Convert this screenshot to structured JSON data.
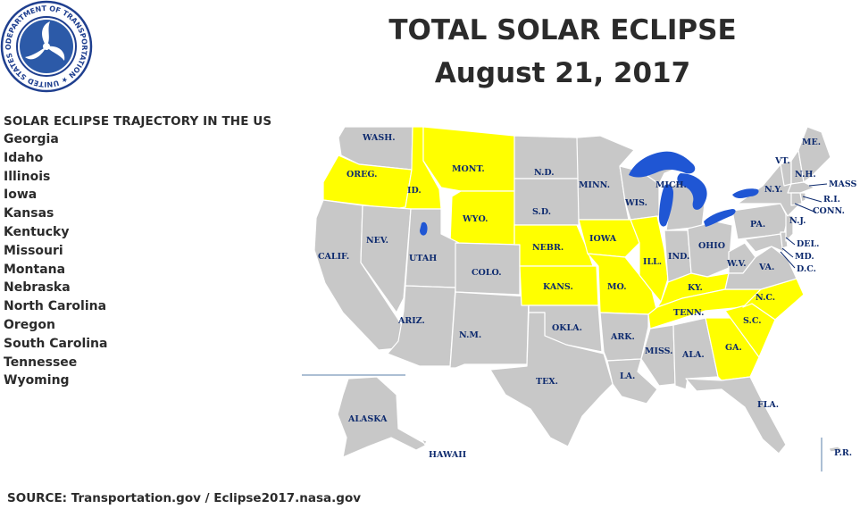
{
  "seal": {
    "ring_text": "DEPARTMENT OF TRANSPORTATION · UNITED STATES OF AMERICA",
    "colors": {
      "ring": "#1f3f8f",
      "center": "#2c5aa8"
    }
  },
  "title": {
    "line1": "TOTAL SOLAR ECLIPSE",
    "line2": "August 21, 2017"
  },
  "trajectory": {
    "heading": "SOLAR ECLIPSE TRAJECTORY IN THE US",
    "states": [
      "Georgia",
      "Idaho",
      "Illinois",
      "Iowa",
      "Kansas",
      "Kentucky",
      "Missouri",
      "Montana",
      "Nebraska",
      "North Carolina",
      "Oregon",
      "South Carolina",
      "Tennessee",
      "Wyoming"
    ]
  },
  "source": "SOURCE: Transportation.gov / Eclipse2017.nasa.gov",
  "map": {
    "colors": {
      "path": "#ffff00",
      "other": "#c8c8c8",
      "water": "#1f56d4",
      "label": "#0d2a6e",
      "border": "#ffffff"
    },
    "labels": {
      "wa": "WASH.",
      "or": "OREG.",
      "id": "ID.",
      "mt": "MONT.",
      "nd": "N.D.",
      "mn": "MINN.",
      "wi": "WIS.",
      "mi": "MICH.",
      "me": "ME.",
      "vt": "VT.",
      "nh": "N.H.",
      "mass": "MASS",
      "ny": "N.Y.",
      "ri": "R.I.",
      "conn": "CONN.",
      "sd": "S.D.",
      "wy": "WYO.",
      "nv": "NEV.",
      "ut": "UTAH",
      "ca": "CALIF.",
      "ne": "NEBR.",
      "ia": "IOWA",
      "il": "ILL.",
      "in": "IND.",
      "oh": "OHIO",
      "pa": "PA.",
      "nj": "N.J.",
      "de": "DEL.",
      "md": "MD.",
      "dc": "D.C.",
      "wv": "W.V.",
      "va": "VA.",
      "co": "COLO.",
      "ks": "KANS.",
      "mo": "MO.",
      "ky": "KY.",
      "nc": "N.C.",
      "tn": "TENN.",
      "sc": "S.C.",
      "az": "ARIZ.",
      "nm": "N.M.",
      "ok": "OKLA.",
      "ar": "ARK.",
      "ms": "MISS.",
      "al": "ALA.",
      "ga": "GA.",
      "tx": "TEX.",
      "la": "LA.",
      "fl": "FLA.",
      "ak": "ALASKA",
      "hi": "HAWAII",
      "pr": "P.R."
    }
  }
}
